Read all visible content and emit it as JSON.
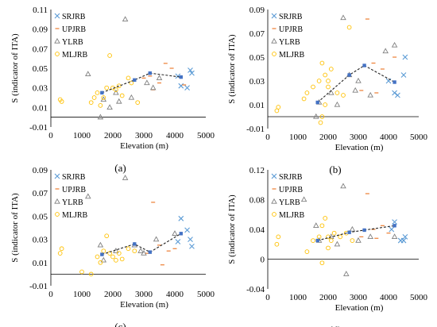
{
  "colors": {
    "SRJRB": "#5b9bd5",
    "UPJRB": "#ed7d31",
    "YLRB": "#7f7f7f",
    "MLJRB": "#ffc000",
    "trend": "#222222",
    "trend_marker": "#4472c4"
  },
  "chart_data": [
    {
      "type": "scatter",
      "panel_label": "(a)",
      "xlabel": "Elevation (m)",
      "ylabel": "S (indicator of ITA)",
      "xlim": [
        0,
        5000
      ],
      "ylim": [
        -0.01,
        0.11
      ],
      "xticks": [
        "0",
        "1000",
        "2000",
        "3000",
        "4000",
        "5000"
      ],
      "yticks": [
        "-0.01",
        "0.01",
        "0.03",
        "0.05",
        "0.07",
        "0.09",
        "0.11"
      ],
      "legend": [
        "SRJRB",
        "UPJRB",
        "YLRB",
        "MLJRB"
      ],
      "series": [
        {
          "name": "SRJRB",
          "marker": "x",
          "points": [
            [
              4200,
              0.032
            ],
            [
              4400,
              0.03
            ],
            [
              4500,
              0.048
            ],
            [
              4550,
              0.045
            ],
            [
              4100,
              0.042
            ]
          ]
        },
        {
          "name": "UPJRB",
          "marker": "dash",
          "points": [
            [
              3200,
              0.042
            ],
            [
              3500,
              0.035
            ],
            [
              3700,
              0.055
            ],
            [
              3900,
              0.05
            ],
            [
              3000,
              0.04
            ],
            [
              4300,
              0.033
            ],
            [
              3300,
              0.028
            ]
          ]
        },
        {
          "name": "YLRB",
          "marker": "triangle",
          "points": [
            [
              1600,
              0.0
            ],
            [
              1700,
              0.018
            ],
            [
              2100,
              0.025
            ],
            [
              2400,
              0.1
            ],
            [
              2600,
              0.02
            ],
            [
              3100,
              0.035
            ],
            [
              3300,
              0.03
            ],
            [
              1200,
              0.044
            ],
            [
              3500,
              0.04
            ],
            [
              2200,
              0.016
            ],
            [
              1900,
              0.01
            ]
          ]
        },
        {
          "name": "MLJRB",
          "marker": "circle",
          "points": [
            [
              300,
              0.018
            ],
            [
              350,
              0.016
            ],
            [
              1300,
              0.015
            ],
            [
              1500,
              0.025
            ],
            [
              1700,
              0.02
            ],
            [
              1800,
              0.03
            ],
            [
              1900,
              0.063
            ],
            [
              2000,
              0.03
            ],
            [
              2100,
              0.028
            ],
            [
              2200,
              0.032
            ],
            [
              2300,
              0.022
            ],
            [
              2500,
              0.04
            ],
            [
              2600,
              0.035
            ],
            [
              2800,
              0.015
            ],
            [
              1600,
              0.012
            ],
            [
              1400,
              0.02
            ]
          ]
        }
      ],
      "trend": [
        [
          1650,
          0.025
        ],
        [
          2700,
          0.038
        ],
        [
          3200,
          0.045
        ],
        [
          4200,
          0.041
        ]
      ]
    },
    {
      "type": "scatter",
      "panel_label": "(b)",
      "xlabel": "Elevation (m)",
      "ylabel": "S (indicator of ITA)",
      "xlim": [
        0,
        5000
      ],
      "ylim": [
        -0.01,
        0.09
      ],
      "xticks": [
        "0",
        "1000",
        "2000",
        "3000",
        "4000",
        "5000"
      ],
      "yticks": [
        "-0.01",
        "0.01",
        "0.03",
        "0.05",
        "0.07",
        "0.09"
      ],
      "legend": [
        "SRJRB",
        "UPJRB",
        "YLRB",
        "MLJRB"
      ],
      "series": [
        {
          "name": "SRJRB",
          "marker": "x",
          "points": [
            [
              4200,
              0.02
            ],
            [
              4300,
              0.018
            ],
            [
              4500,
              0.035
            ],
            [
              4550,
              0.05
            ],
            [
              4000,
              0.03
            ]
          ]
        },
        {
          "name": "UPJRB",
          "marker": "dash",
          "points": [
            [
              3300,
              0.082
            ],
            [
              3100,
              0.022
            ],
            [
              3500,
              0.045
            ],
            [
              3800,
              0.04
            ],
            [
              4200,
              0.05
            ],
            [
              3600,
              0.02
            ]
          ]
        },
        {
          "name": "YLRB",
          "marker": "triangle",
          "points": [
            [
              1600,
              0.0
            ],
            [
              1700,
              0.012
            ],
            [
              2100,
              0.02
            ],
            [
              2500,
              0.083
            ],
            [
              2700,
              0.035
            ],
            [
              2900,
              0.022
            ],
            [
              3000,
              0.03
            ],
            [
              3900,
              0.055
            ],
            [
              4200,
              0.06
            ],
            [
              3400,
              0.018
            ],
            [
              2300,
              0.01
            ]
          ]
        },
        {
          "name": "MLJRB",
          "marker": "circle",
          "points": [
            [
              300,
              0.005
            ],
            [
              350,
              0.008
            ],
            [
              1200,
              0.015
            ],
            [
              1300,
              0.02
            ],
            [
              1500,
              0.025
            ],
            [
              1700,
              0.03
            ],
            [
              1800,
              0.045
            ],
            [
              1900,
              0.035
            ],
            [
              2000,
              0.025
            ],
            [
              2100,
              0.04
            ],
            [
              2300,
              0.02
            ],
            [
              2500,
              0.018
            ],
            [
              2700,
              0.075
            ],
            [
              1750,
              -0.005
            ],
            [
              1800,
              0.0
            ],
            [
              1900,
              0.01
            ],
            [
              2000,
              0.03
            ]
          ]
        }
      ],
      "trend": [
        [
          1650,
          0.012
        ],
        [
          2700,
          0.035
        ],
        [
          3200,
          0.043
        ],
        [
          4200,
          0.029
        ]
      ]
    },
    {
      "type": "scatter",
      "panel_label": "(c)",
      "xlabel": "Elevation (m)",
      "ylabel": "S (indicator of ITA)",
      "xlim": [
        0,
        5000
      ],
      "ylim": [
        -0.01,
        0.09
      ],
      "xticks": [
        "0",
        "1000",
        "2000",
        "3000",
        "4000",
        "5000"
      ],
      "yticks": [
        "-0.01",
        "0.01",
        "0.03",
        "0.05",
        "0.07",
        "0.09"
      ],
      "legend": [
        "SRJRB",
        "UPJRB",
        "YLRB",
        "MLJRB"
      ],
      "series": [
        {
          "name": "SRJRB",
          "marker": "x",
          "points": [
            [
              4200,
              0.048
            ],
            [
              4400,
              0.038
            ],
            [
              4500,
              0.03
            ],
            [
              4550,
              0.024
            ],
            [
              4100,
              0.028
            ]
          ]
        },
        {
          "name": "UPJRB",
          "marker": "dash",
          "points": [
            [
              3300,
              0.062
            ],
            [
              3100,
              0.018
            ],
            [
              3500,
              0.025
            ],
            [
              3800,
              0.02
            ],
            [
              4000,
              0.022
            ],
            [
              3600,
              0.008
            ]
          ]
        },
        {
          "name": "YLRB",
          "marker": "triangle",
          "points": [
            [
              1200,
              0.067
            ],
            [
              1600,
              0.025
            ],
            [
              1700,
              0.012
            ],
            [
              2100,
              0.02
            ],
            [
              2400,
              0.083
            ],
            [
              2700,
              0.025
            ],
            [
              2900,
              0.02
            ],
            [
              3000,
              0.018
            ],
            [
              3400,
              0.03
            ],
            [
              4000,
              0.035
            ]
          ]
        },
        {
          "name": "MLJRB",
          "marker": "circle",
          "points": [
            [
              300,
              0.018
            ],
            [
              350,
              0.022
            ],
            [
              1000,
              0.002
            ],
            [
              1300,
              0.0
            ],
            [
              1500,
              0.015
            ],
            [
              1700,
              0.02
            ],
            [
              1800,
              0.033
            ],
            [
              1900,
              0.018
            ],
            [
              2000,
              0.015
            ],
            [
              2100,
              0.012
            ],
            [
              2200,
              0.018
            ],
            [
              2500,
              0.022
            ],
            [
              2700,
              0.02
            ],
            [
              1600,
              0.01
            ],
            [
              2300,
              0.013
            ]
          ]
        }
      ],
      "trend": [
        [
          1650,
          0.017
        ],
        [
          2700,
          0.026
        ],
        [
          3200,
          0.019
        ],
        [
          4200,
          0.035
        ]
      ]
    },
    {
      "type": "scatter",
      "panel_label": "(d)",
      "xlabel": "Elevation (m)",
      "ylabel": "S (indicator of ITA)",
      "xlim": [
        0,
        5000
      ],
      "ylim": [
        -0.04,
        0.12
      ],
      "xticks": [
        "0",
        "1000",
        "2000",
        "3000",
        "4000",
        "5000"
      ],
      "yticks": [
        "-0.04",
        "0",
        "0.04",
        "0.08",
        "0.12"
      ],
      "legend": [
        "SRJRB",
        "UPJRB",
        "YLRB",
        "MLJRB"
      ],
      "series": [
        {
          "name": "SRJRB",
          "marker": "x",
          "points": [
            [
              4200,
              0.05
            ],
            [
              4400,
              0.025
            ],
            [
              4500,
              0.025
            ],
            [
              4550,
              0.03
            ],
            [
              4100,
              0.04
            ]
          ]
        },
        {
          "name": "UPJRB",
          "marker": "dash",
          "points": [
            [
              3300,
              0.088
            ],
            [
              3100,
              0.03
            ],
            [
              3500,
              0.04
            ],
            [
              3800,
              0.045
            ],
            [
              4000,
              0.035
            ],
            [
              3600,
              0.028
            ]
          ]
        },
        {
          "name": "YLRB",
          "marker": "triangle",
          "points": [
            [
              1200,
              0.08
            ],
            [
              1600,
              0.045
            ],
            [
              1700,
              0.025
            ],
            [
              2100,
              0.03
            ],
            [
              2500,
              0.098
            ],
            [
              2600,
              -0.02
            ],
            [
              2800,
              0.04
            ],
            [
              3000,
              0.025
            ],
            [
              3400,
              0.03
            ],
            [
              4200,
              0.03
            ],
            [
              2300,
              0.02
            ]
          ]
        },
        {
          "name": "MLJRB",
          "marker": "circle",
          "points": [
            [
              300,
              0.02
            ],
            [
              350,
              0.03
            ],
            [
              1300,
              0.01
            ],
            [
              1500,
              0.025
            ],
            [
              1700,
              0.03
            ],
            [
              1800,
              0.045
            ],
            [
              1900,
              0.055
            ],
            [
              2000,
              0.03
            ],
            [
              2100,
              0.025
            ],
            [
              2200,
              0.035
            ],
            [
              2400,
              0.03
            ],
            [
              2600,
              0.035
            ],
            [
              2800,
              0.025
            ],
            [
              1800,
              -0.005
            ],
            [
              2000,
              0.015
            ]
          ]
        }
      ],
      "trend": [
        [
          1650,
          0.025
        ],
        [
          2700,
          0.036
        ],
        [
          3200,
          0.039
        ],
        [
          4200,
          0.045
        ]
      ]
    }
  ]
}
